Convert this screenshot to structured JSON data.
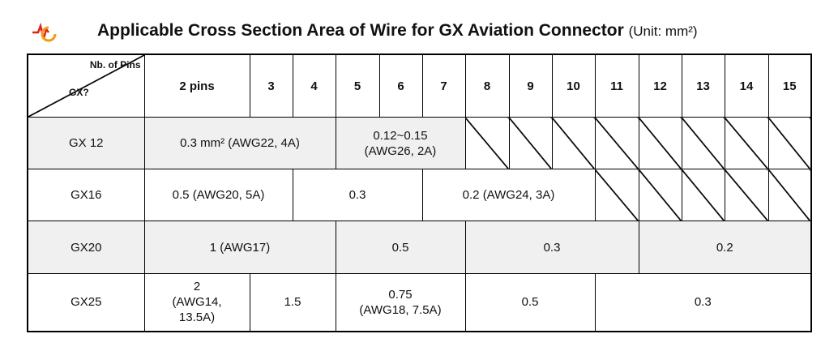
{
  "header": {
    "title": "Applicable Cross Section Area of Wire for GX Aviation Connector",
    "unit": "(Unit: mm²)"
  },
  "table": {
    "corner": {
      "top": "Nb. of Pins",
      "bottom": "GX?"
    },
    "columns": [
      "2 pins",
      "3",
      "4",
      "5",
      "6",
      "7",
      "8",
      "9",
      "10",
      "11",
      "12",
      "13",
      "14",
      "15"
    ],
    "rows": [
      {
        "label": "GX 12",
        "cells": [
          "0.3 mm² (AWG22, 4A)",
          "0.12~0.15\n(AWG26, 2A)"
        ]
      },
      {
        "label": "GX16",
        "cells": [
          "0.5 (AWG20, 5A)",
          "0.3",
          "0.2 (AWG24, 3A)"
        ]
      },
      {
        "label": "GX20",
        "cells": [
          "1 (AWG17)",
          "0.5",
          "0.3",
          "0.2"
        ]
      },
      {
        "label": "GX25",
        "cells": [
          "2\n(AWG14,\n13.5A)",
          "1.5",
          "0.75\n(AWG18, 7.5A)",
          "0.5",
          "0.3"
        ]
      }
    ]
  }
}
